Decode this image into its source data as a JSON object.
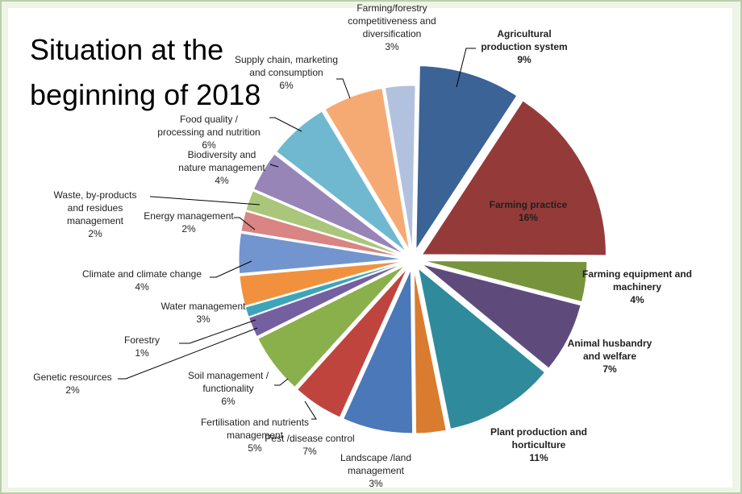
{
  "chart_data": {
    "type": "pie",
    "title": "Situation at the beginning of 2018",
    "unit": "%",
    "slices": [
      {
        "label": [
          "Agricultural",
          "production system"
        ],
        "value": 9,
        "value_label": "9%",
        "color": "#3b6396",
        "bold": true
      },
      {
        "label": [
          "Farming practice"
        ],
        "value": 16,
        "value_label": "16%",
        "color": "#943b3a",
        "bold": true
      },
      {
        "label": [
          "Farming equipment and",
          "machinery"
        ],
        "value": 4,
        "value_label": "4%",
        "color": "#77933c",
        "bold": true
      },
      {
        "label": [
          "Animal husbandry",
          "and welfare"
        ],
        "value": 7,
        "value_label": "7%",
        "color": "#5f4a7c",
        "bold": true
      },
      {
        "label": [
          "Plant production and",
          "horticulture"
        ],
        "value": 11,
        "value_label": "11%",
        "color": "#2f8a9c",
        "bold": true
      },
      {
        "label": [
          "Landscape /land",
          "management"
        ],
        "value": 3,
        "value_label": "3%",
        "color": "#d97c2f",
        "bold": false
      },
      {
        "label": [
          "Pest /disease control"
        ],
        "value": 7,
        "value_label": "7%",
        "color": "#4a78b8",
        "bold": false
      },
      {
        "label": [
          "Fertilisation and nutrients",
          "management"
        ],
        "value": 5,
        "value_label": "5%",
        "color": "#c0443e",
        "bold": false
      },
      {
        "label": [
          "Soil management /",
          "functionality"
        ],
        "value": 6,
        "value_label": "6%",
        "color": "#8ab04c",
        "bold": false
      },
      {
        "label": [
          "Genetic resources"
        ],
        "value": 2,
        "value_label": "2%",
        "color": "#7460a0",
        "bold": false
      },
      {
        "label": [
          "Forestry"
        ],
        "value": 1,
        "value_label": "1%",
        "color": "#3da5b9",
        "bold": false
      },
      {
        "label": [
          "Water management"
        ],
        "value": 3,
        "value_label": "3%",
        "color": "#f2913d",
        "bold": false
      },
      {
        "label": [
          "Climate and climate change"
        ],
        "value": 4,
        "value_label": "4%",
        "color": "#7395cf",
        "bold": false
      },
      {
        "label": [
          "Energy management"
        ],
        "value": 2,
        "value_label": "2%",
        "color": "#d88583",
        "bold": false
      },
      {
        "label": [
          "Waste, by-products",
          "and residues",
          "management"
        ],
        "value": 2,
        "value_label": "2%",
        "color": "#a9c67a",
        "bold": false
      },
      {
        "label": [
          "Biodiversity and",
          "nature management"
        ],
        "value": 4,
        "value_label": "4%",
        "color": "#9685b6",
        "bold": false
      },
      {
        "label": [
          "Food quality /",
          "processing and nutrition"
        ],
        "value": 6,
        "value_label": "6%",
        "color": "#6fb8cf",
        "bold": false
      },
      {
        "label": [
          "Supply chain,  marketing",
          "and consumption"
        ],
        "value": 6,
        "value_label": "6%",
        "color": "#f6aa73",
        "bold": false
      },
      {
        "label": [
          "Farming/forestry",
          "competitiveness and",
          "diversification"
        ],
        "value": 3,
        "value_label": "3%",
        "color": "#b2c2de",
        "bold": false
      }
    ]
  }
}
